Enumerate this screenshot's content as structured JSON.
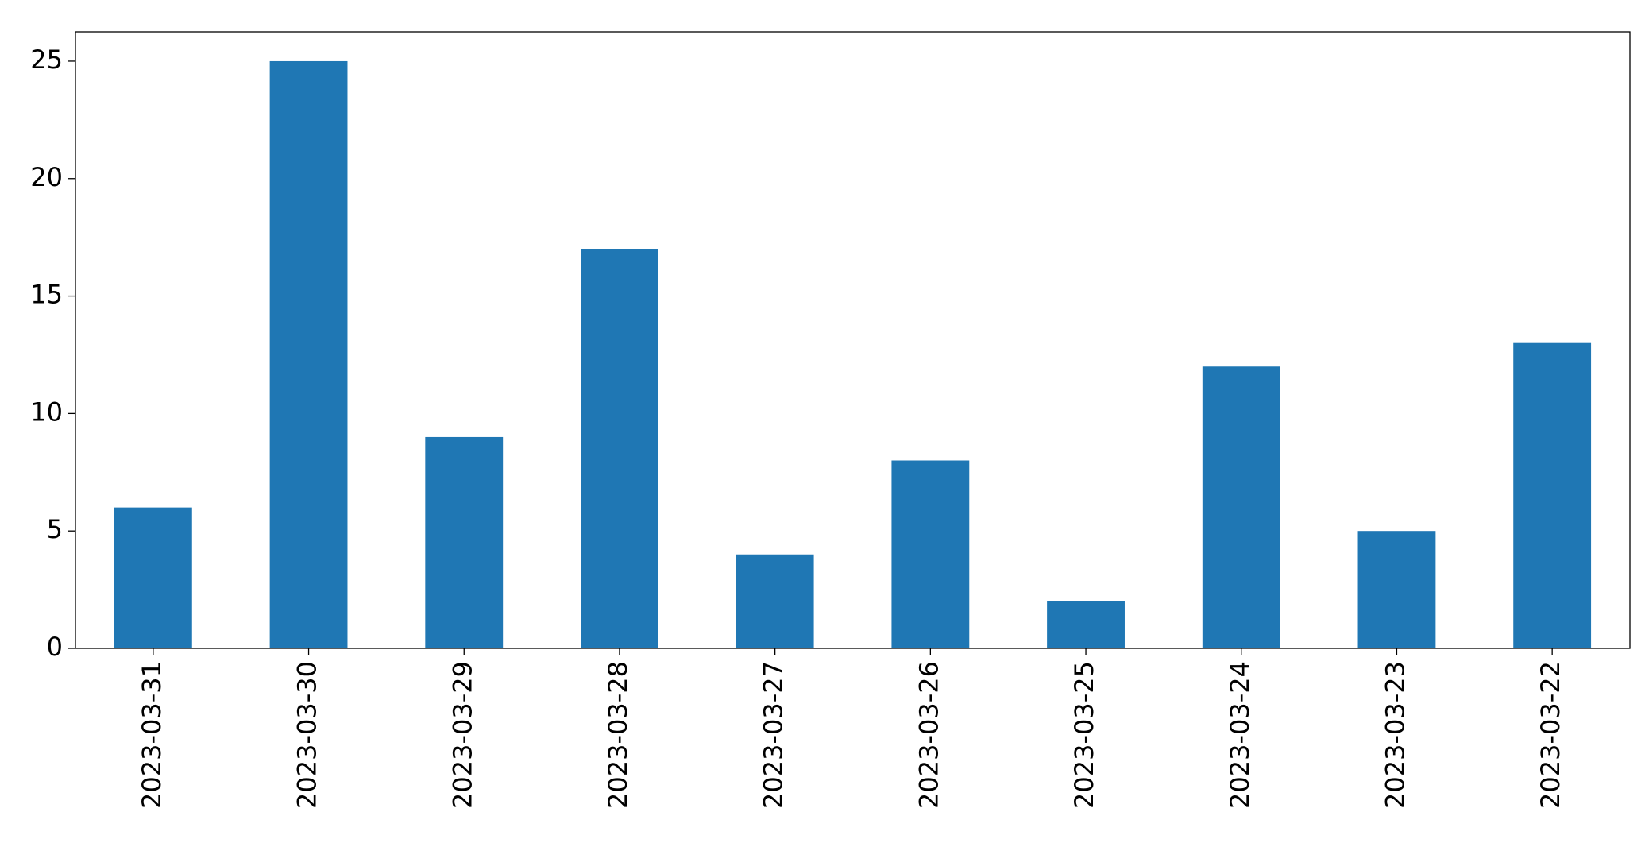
{
  "chart_data": {
    "type": "bar",
    "categories": [
      "2023-03-31",
      "2023-03-30",
      "2023-03-29",
      "2023-03-28",
      "2023-03-27",
      "2023-03-26",
      "2023-03-25",
      "2023-03-24",
      "2023-03-23",
      "2023-03-22"
    ],
    "values": [
      6,
      25,
      9,
      17,
      4,
      8,
      2,
      12,
      5,
      13
    ],
    "color": "#1f77b4",
    "ylim": [
      0,
      26.25
    ],
    "yticks": [
      0,
      5,
      10,
      15,
      20,
      25
    ],
    "grid": false
  }
}
